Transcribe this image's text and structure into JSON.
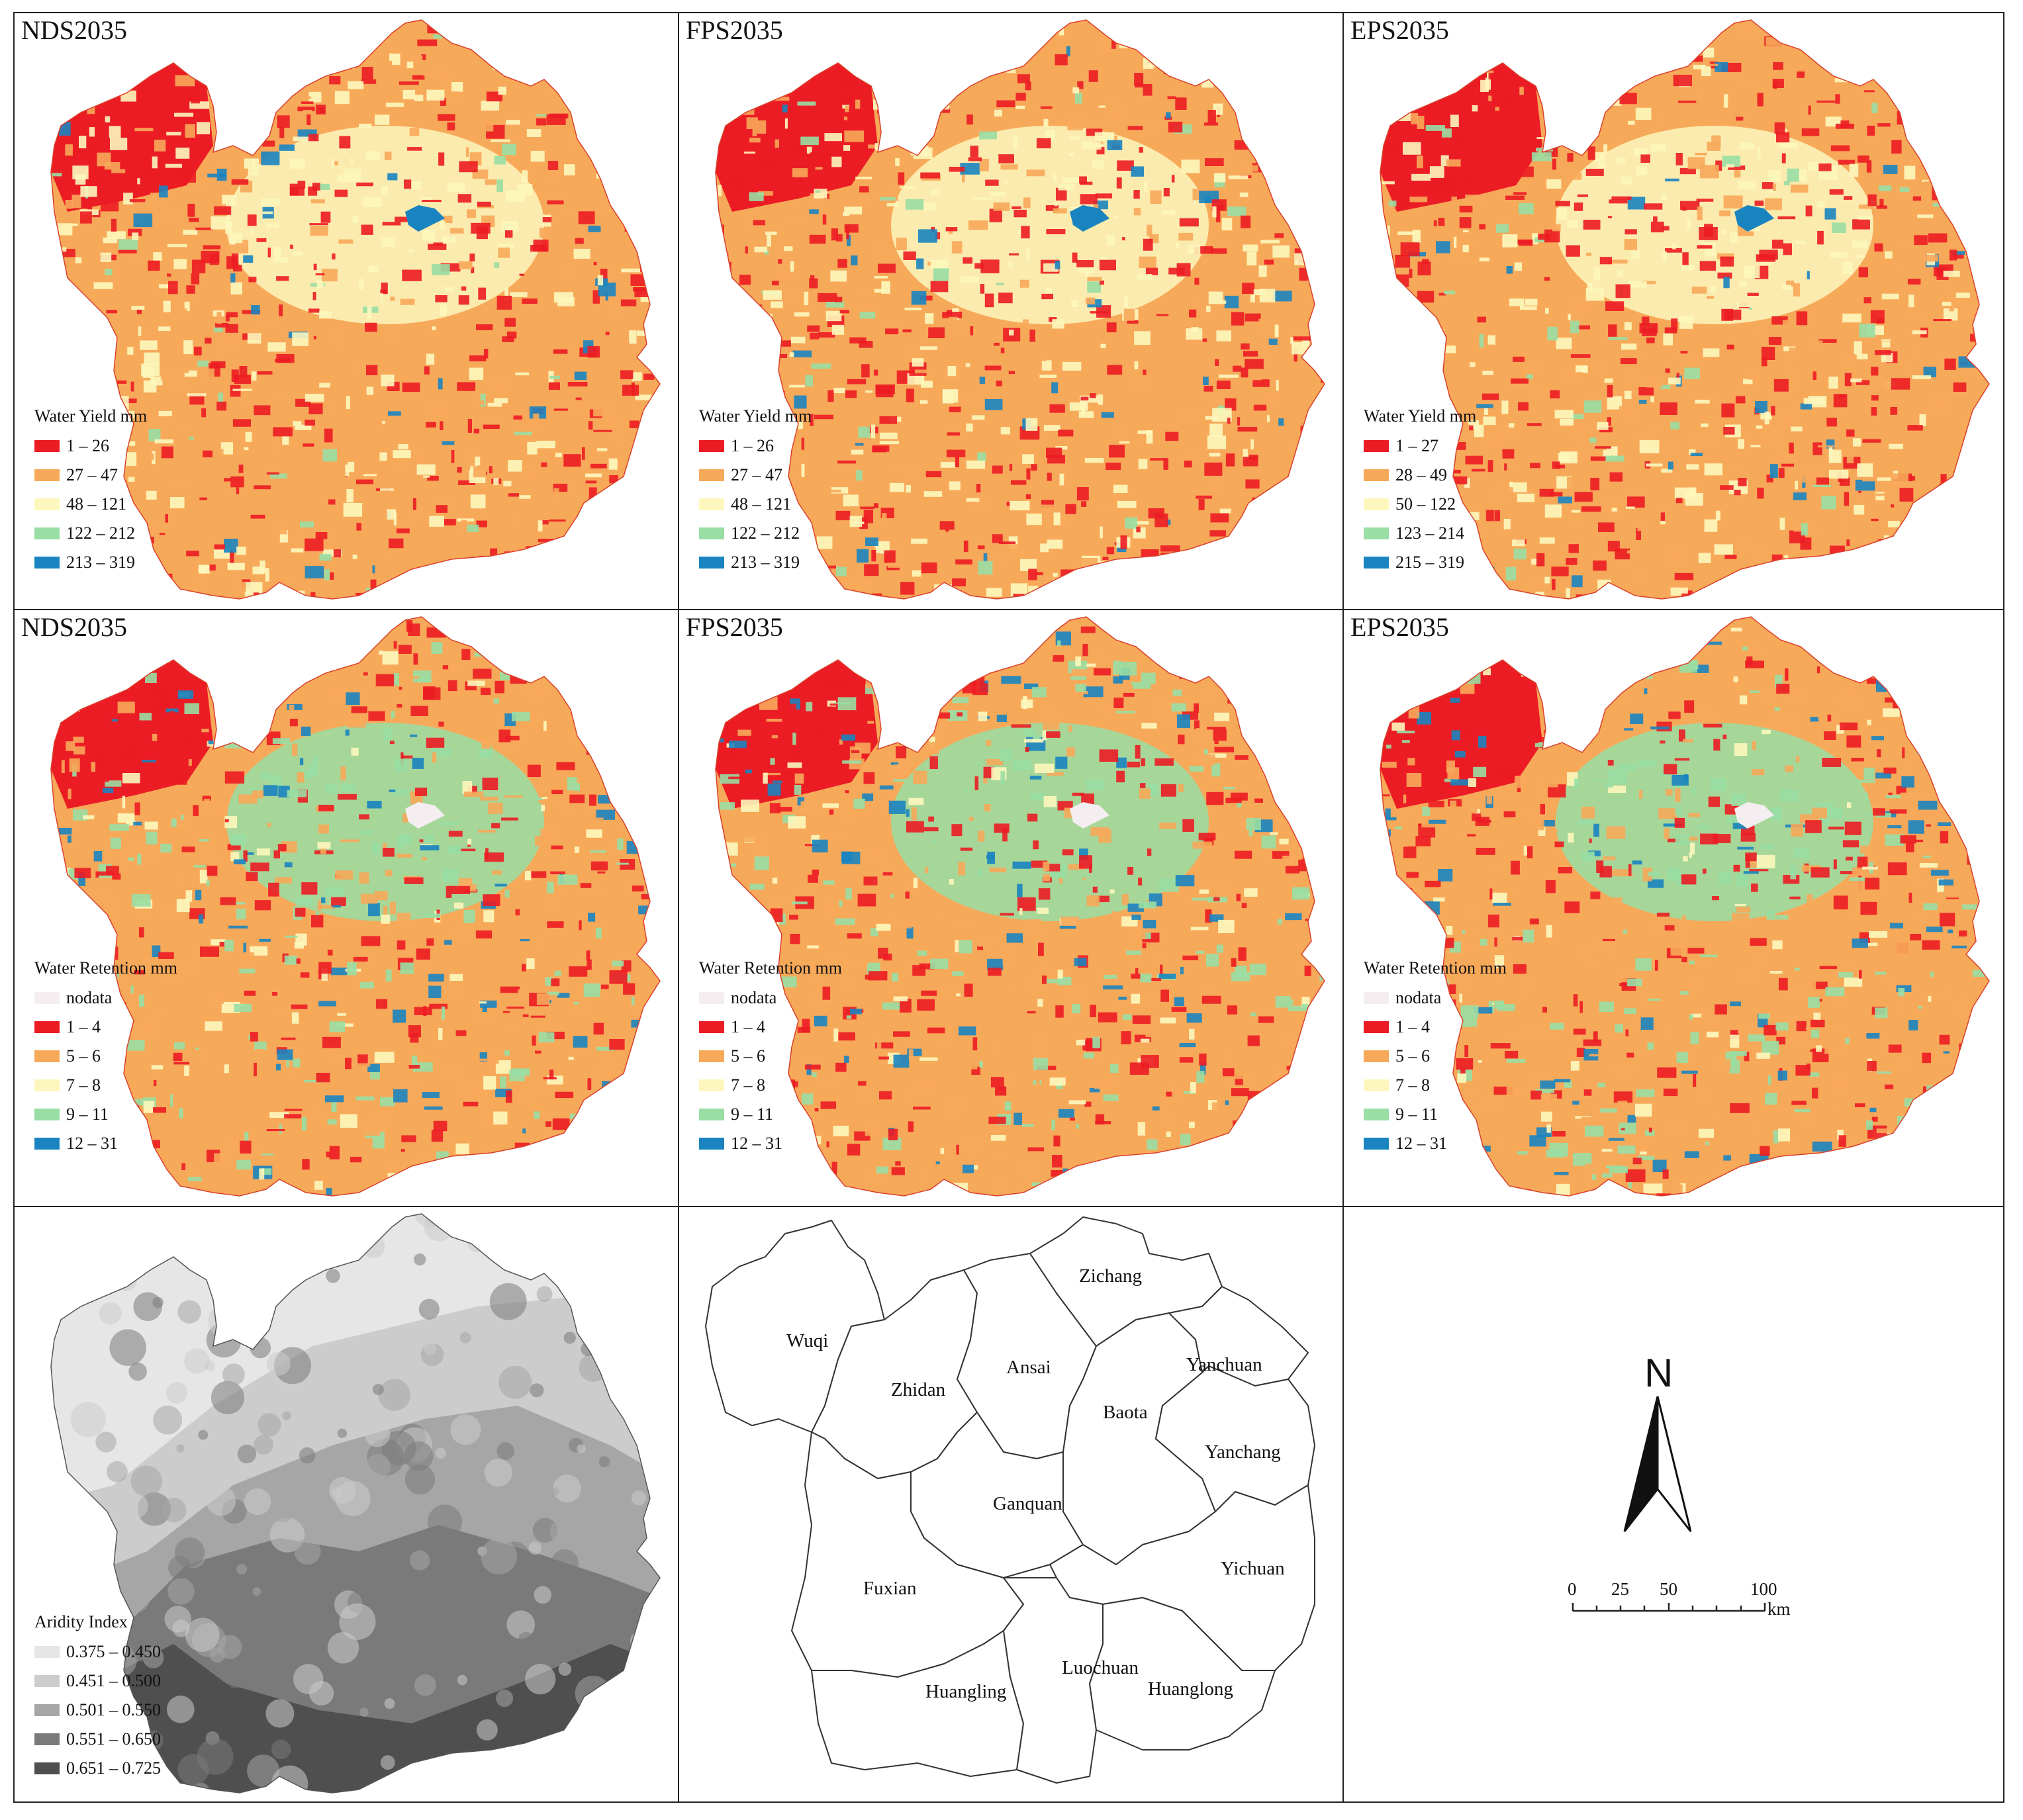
{
  "colors": {
    "wy": [
      "#ec1c24",
      "#f7a95a",
      "#fdf7bd",
      "#99dea4",
      "#1a84c0"
    ],
    "wr": [
      "#f4eef0",
      "#ec1c24",
      "#f7a95a",
      "#fdf7bd",
      "#99dea4",
      "#1a84c0"
    ],
    "ai": [
      "#e6e6e6",
      "#cccccc",
      "#a6a6a6",
      "#7a7a7a",
      "#4f4f4f"
    ]
  },
  "water_yield": [
    {
      "title": "NDS2035",
      "legend_title": "Water Yield  mm",
      "classes": [
        "1 – 26",
        "27 – 47",
        "48 – 121",
        "122 – 212",
        "213 – 319"
      ]
    },
    {
      "title": "FPS2035",
      "legend_title": "Water Yield  mm",
      "classes": [
        "1 – 26",
        "27 – 47",
        "48 – 121",
        "122 – 212",
        "213 – 319"
      ]
    },
    {
      "title": "EPS2035",
      "legend_title": "Water Yield  mm",
      "classes": [
        "1 – 27",
        "28 – 49",
        "50 – 122",
        "123 – 214",
        "215 – 319"
      ]
    }
  ],
  "water_retention": [
    {
      "title": "NDS2035",
      "legend_title": "Water Retention  mm",
      "classes": [
        "nodata",
        "1 – 4",
        "5 – 6",
        "7 – 8",
        "9 – 11",
        "12 – 31"
      ]
    },
    {
      "title": "FPS2035",
      "legend_title": "Water Retention  mm",
      "classes": [
        "nodata",
        "1 – 4",
        "5 – 6",
        "7 – 8",
        "9 – 11",
        "12 – 31"
      ]
    },
    {
      "title": "EPS2035",
      "legend_title": "Water Retention  mm",
      "classes": [
        "nodata",
        "1 – 4",
        "5 – 6",
        "7 – 8",
        "9 – 11",
        "12 – 31"
      ]
    }
  ],
  "aridity": {
    "legend_title": "Aridity Index",
    "classes": [
      "0.375 – 0.450",
      "0.451 – 0.500",
      "0.501 – 0.550",
      "0.551 – 0.650",
      "0.651 – 0.725"
    ]
  },
  "counties": [
    "Zichang",
    "Wuqi",
    "Zhidan",
    "Ansai",
    "Yanchuan",
    "Baota",
    "Yanchang",
    "Ganquan",
    "Fuxian",
    "Yichuan",
    "Huangling",
    "Luochuan",
    "Huanglong"
  ],
  "compass": {
    "label": "N"
  },
  "scale": {
    "ticks": [
      "0",
      "25",
      "50",
      "100"
    ],
    "unit": "km"
  }
}
